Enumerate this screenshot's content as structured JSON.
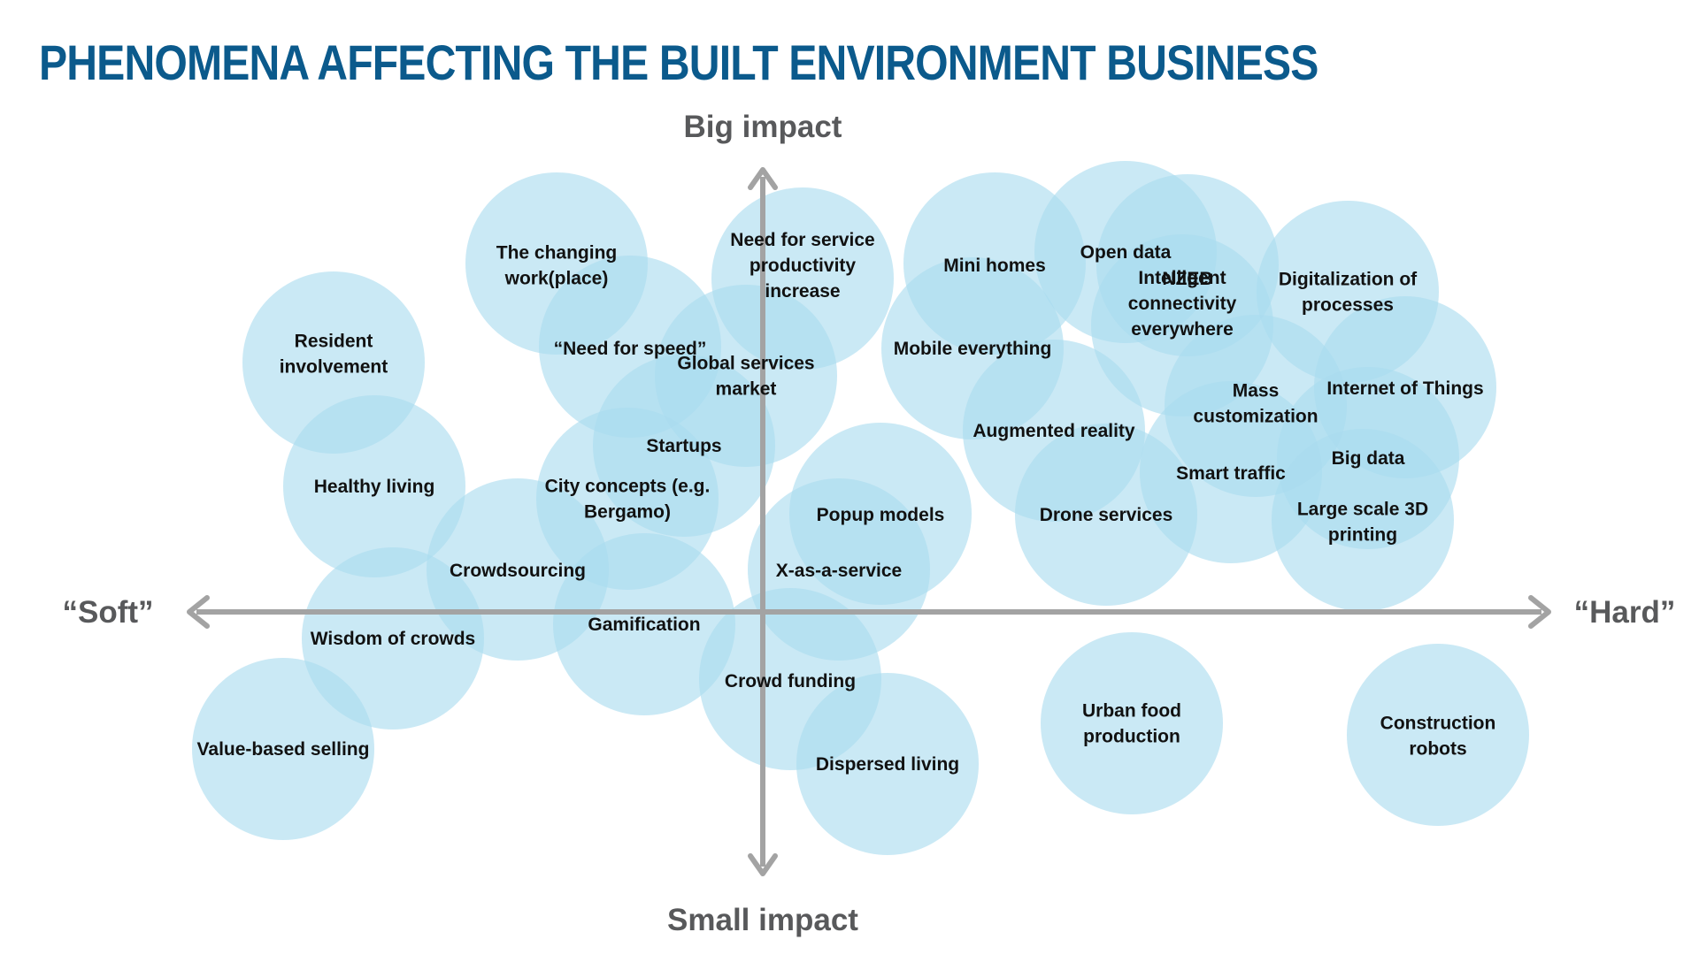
{
  "title": "PHENOMENA AFFECTING THE BUILT ENVIRONMENT BUSINESS",
  "axes": {
    "top": "Big impact",
    "bottom": "Small impact",
    "left": "“Soft”",
    "right": "“Hard”"
  },
  "colors": {
    "title": "#0b5a8c",
    "axis": "#a3a3a3",
    "axis_text": "#58595b",
    "bubble": "#a9dcef",
    "label": "#111111"
  },
  "phenomena": [
    {
      "label": [
        "Resident",
        "involvement"
      ]
    },
    {
      "label": [
        "The changing",
        "work(place)"
      ]
    },
    {
      "label": [
        "Need for service",
        "productivity",
        "increase"
      ]
    },
    {
      "label": [
        "Mini homes"
      ]
    },
    {
      "label": [
        "Open data"
      ]
    },
    {
      "label": [
        "NZEB"
      ]
    },
    {
      "label": [
        "Intelligent",
        "connectivity",
        "everywhere"
      ]
    },
    {
      "label": [
        "Digitalization of",
        "processes"
      ]
    },
    {
      "label": [
        "“Need for speed”"
      ]
    },
    {
      "label": [
        "Global services",
        "market"
      ]
    },
    {
      "label": [
        "Mobile everything"
      ]
    },
    {
      "label": [
        "Mass",
        "customization"
      ]
    },
    {
      "label": [
        "Internet of Things"
      ]
    },
    {
      "label": [
        "Augmented reality"
      ]
    },
    {
      "label": [
        "Healthy living"
      ]
    },
    {
      "label": [
        "Startups"
      ]
    },
    {
      "label": [
        "Big data"
      ]
    },
    {
      "label": [
        "Smart traffic"
      ]
    },
    {
      "label": [
        "City concepts (e.g.",
        "Bergamo)"
      ]
    },
    {
      "label": [
        "Large scale 3D",
        "printing"
      ]
    },
    {
      "label": [
        "Popup models"
      ]
    },
    {
      "label": [
        "Drone services"
      ]
    },
    {
      "label": [
        "Crowdsourcing"
      ]
    },
    {
      "label": [
        "X-as-a-service"
      ]
    },
    {
      "label": [
        "Gamification"
      ]
    },
    {
      "label": [
        "Wisdom of crowds"
      ]
    },
    {
      "label": [
        "Crowd funding"
      ]
    },
    {
      "label": [
        "Urban food",
        "production"
      ]
    },
    {
      "label": [
        "Construction",
        "robots"
      ]
    },
    {
      "label": [
        "Value-based selling"
      ]
    },
    {
      "label": [
        "Dispersed living"
      ]
    }
  ]
}
